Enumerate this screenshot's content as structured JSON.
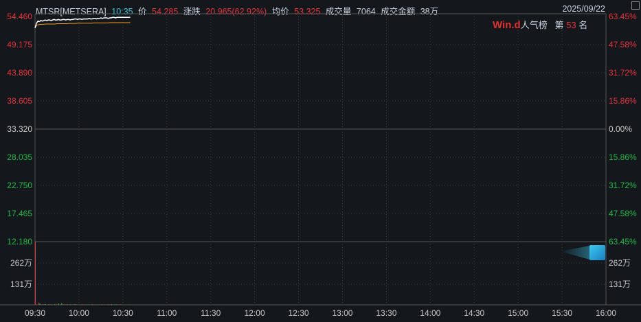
{
  "header": {
    "symbol": "MTSR[METSERA]",
    "time": "10:35",
    "price_label": "价",
    "price": "54.285",
    "change_label": "涨跌",
    "change": "20.965(62.92%)",
    "avg_label": "均价",
    "avg": "53.325",
    "volume_label": "成交量",
    "volume": "7064",
    "amount_label": "成交金额",
    "amount": "38万",
    "date": "2025/09/22"
  },
  "rank": {
    "logo": "Win.d",
    "label": "人气榜",
    "prefix": "第",
    "value": "53",
    "suffix": "名"
  },
  "colors": {
    "up": "#e8323c",
    "down": "#22b94a",
    "price_line": "#ffffff",
    "avg_line": "#f0a020",
    "background": "#14171c"
  },
  "chart_data": {
    "type": "line",
    "price_ticks": [
      "54.460",
      "49.175",
      "43.890",
      "38.605",
      "33.320",
      "28.035",
      "22.750",
      "17.465",
      "12.180"
    ],
    "pct_ticks": [
      "63.45%",
      "47.58%",
      "31.72%",
      "15.86%",
      "0.00%",
      "15.86%",
      "31.72%",
      "47.58%",
      "63.45%"
    ],
    "volume_ticks": [
      "262万",
      "131万"
    ],
    "time_ticks": [
      "09:30",
      "10:00",
      "10:30",
      "11:00",
      "11:30",
      "12:00",
      "12:30",
      "13:00",
      "13:30",
      "14:00",
      "14:30",
      "15:00",
      "15:30",
      "16:00"
    ],
    "ylim": [
      12.18,
      54.46
    ],
    "prev_close": 33.32,
    "price_series": [
      52.3,
      53.2,
      53.6,
      53.5,
      53.7,
      53.6,
      53.7,
      53.8,
      53.7,
      53.8,
      53.8,
      53.7,
      53.8,
      53.9,
      53.8,
      53.8,
      53.9,
      53.8,
      53.8,
      53.9,
      53.9,
      53.8,
      53.9,
      53.9,
      53.8,
      53.9,
      53.9,
      54.0,
      54.0,
      53.9,
      54.0,
      54.0,
      53.9,
      54.0,
      54.0,
      54.0,
      54.0,
      54.1,
      54.0,
      54.0,
      54.1,
      54.1,
      54.0,
      54.1,
      54.1,
      54.2,
      54.1,
      54.2,
      54.2,
      54.2,
      54.1,
      54.2,
      54.2,
      54.3,
      54.3,
      54.2,
      54.3,
      54.3,
      54.3,
      54.3,
      54.3,
      54.3,
      54.3,
      54.3,
      54.3,
      54.3
    ],
    "avg_series": [
      52.3,
      52.8,
      52.9,
      52.95,
      53.0,
      53.0,
      53.0,
      53.05,
      53.05,
      53.05,
      53.05,
      53.05,
      53.05,
      53.05,
      53.05,
      53.1,
      53.1,
      53.1,
      53.1,
      53.1,
      53.1,
      53.1,
      53.1,
      53.15,
      53.15,
      53.15,
      53.15,
      53.15,
      53.15,
      53.2,
      53.2,
      53.2,
      53.2,
      53.2,
      53.2,
      53.2,
      53.2,
      53.2,
      53.2,
      53.2,
      53.25,
      53.25,
      53.25,
      53.25,
      53.25,
      53.25,
      53.25,
      53.25,
      53.25,
      53.25,
      53.25,
      53.3,
      53.3,
      53.3,
      53.3,
      53.3,
      53.3,
      53.3,
      53.3,
      53.3,
      53.3,
      53.3,
      53.3,
      53.3,
      53.3,
      53.32
    ],
    "volume_max": 393,
    "volume_series": [
      393,
      3,
      14,
      10,
      2,
      4,
      3,
      4,
      3,
      2,
      5,
      3,
      2,
      4,
      6,
      2,
      9,
      3,
      12,
      3,
      2,
      3,
      4,
      2,
      3,
      2,
      3,
      4,
      3,
      2,
      2,
      3,
      4,
      2,
      3,
      2,
      3,
      2,
      3,
      4,
      3,
      2,
      3,
      2,
      2,
      3,
      2,
      3,
      2,
      2,
      3,
      2,
      4,
      3,
      2,
      3,
      2,
      2,
      3,
      2,
      2,
      2,
      2,
      2,
      2,
      2
    ],
    "volume_up": [
      1,
      1,
      1,
      0,
      0,
      1,
      0,
      0,
      1,
      0,
      1,
      0,
      1,
      0,
      1,
      0,
      0,
      1,
      0,
      1,
      0,
      1,
      1,
      0,
      0,
      1,
      1,
      0,
      1,
      0,
      0,
      1,
      1,
      0,
      1,
      0,
      0,
      1,
      0,
      1,
      1,
      0,
      1,
      0,
      0,
      1,
      0,
      1,
      1,
      0,
      0,
      1,
      0,
      1,
      0,
      0,
      0,
      1,
      1,
      0,
      0,
      1,
      1,
      0,
      0,
      0
    ]
  }
}
